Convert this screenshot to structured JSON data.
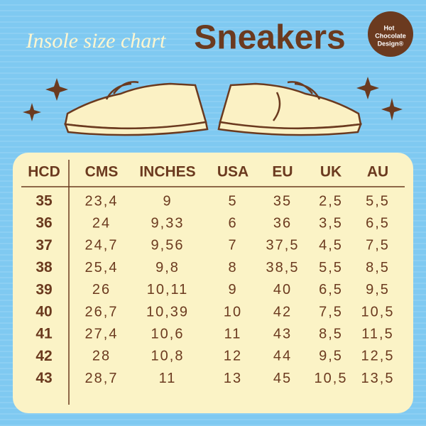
{
  "header": {
    "subtitle": "Insole size chart",
    "title": "Sneakers",
    "logo": [
      "Hot",
      "Chocolate",
      "Design®"
    ]
  },
  "table": {
    "columns": [
      "HCD",
      "CMS",
      "INCHES",
      "USA",
      "EU",
      "UK",
      "AU"
    ],
    "rows": [
      [
        "35",
        "23,4",
        "9",
        "5",
        "35",
        "2,5",
        "5,5"
      ],
      [
        "36",
        "24",
        "9,33",
        "6",
        "36",
        "3,5",
        "6,5"
      ],
      [
        "37",
        "24,7",
        "9,56",
        "7",
        "37,5",
        "4,5",
        "7,5"
      ],
      [
        "38",
        "25,4",
        "9,8",
        "8",
        "38,5",
        "5,5",
        "8,5"
      ],
      [
        "39",
        "26",
        "10,11",
        "9",
        "40",
        "6,5",
        "9,5"
      ],
      [
        "40",
        "26,7",
        "10,39",
        "10",
        "42",
        "7,5",
        "10,5"
      ],
      [
        "41",
        "27,4",
        "10,6",
        "11",
        "43",
        "8,5",
        "11,5"
      ],
      [
        "42",
        "28",
        "10,8",
        "12",
        "44",
        "9,5",
        "12,5"
      ],
      [
        "43",
        "28,7",
        "11",
        "13",
        "45",
        "10,5",
        "13,5"
      ]
    ]
  }
}
